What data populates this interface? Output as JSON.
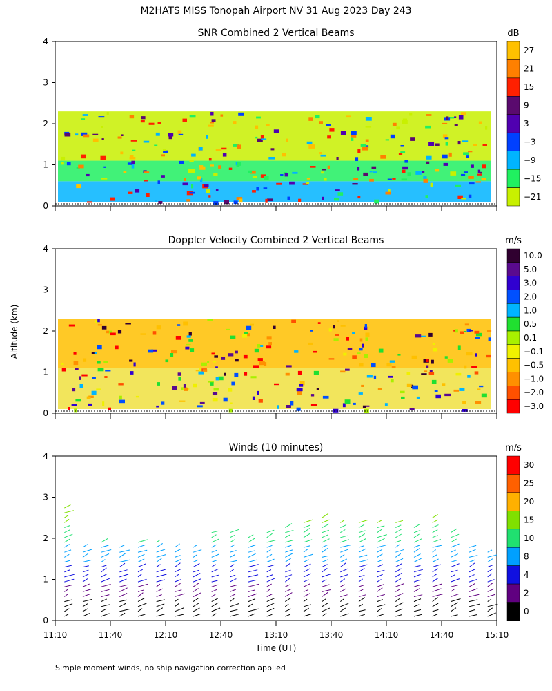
{
  "page": {
    "title": "M2HATS MISS Tonopah Airport NV  31 Aug 2023 Day 243",
    "ylabel": "Altitude (km)",
    "xlabel": "Time (UT)",
    "footnote": "Simple moment winds, no ship navigation correction applied"
  },
  "chart_data": [
    {
      "type": "heatmap",
      "title": "SNR Combined 2 Vertical Beams",
      "xlabel": "Time (UT)",
      "ylabel": "Altitude (km)",
      "ylim": [
        0,
        4
      ],
      "yticks": [
        "0",
        "1",
        "2",
        "3",
        "4"
      ],
      "x_ticklabels": [],
      "colorbar": {
        "unit": "dB",
        "labels": [
          "27",
          "21",
          "15",
          "9",
          "3",
          "−3",
          "−9",
          "−15",
          "−21"
        ],
        "colors": [
          "#ffc000",
          "#ff8000",
          "#ff2000",
          "#5a0a6e",
          "#5000b0",
          "#0040ff",
          "#00b4ff",
          "#20f060",
          "#c8f000"
        ]
      },
      "bands": [
        {
          "alt_from": 0.1,
          "alt_to": 0.6,
          "color": "#00b4ff"
        },
        {
          "alt_from": 0.6,
          "alt_to": 1.1,
          "color": "#20f060"
        },
        {
          "alt_from": 1.1,
          "alt_to": 2.3,
          "color": "#c8f000"
        }
      ]
    },
    {
      "type": "heatmap",
      "title": "Doppler Velocity Combined 2 Vertical Beams",
      "xlabel": "Time (UT)",
      "ylabel": "Altitude (km)",
      "ylim": [
        0,
        4
      ],
      "yticks": [
        "0",
        "1",
        "2",
        "3",
        "4"
      ],
      "x_ticklabels": [],
      "colorbar": {
        "unit": "m/s",
        "labels": [
          "10.0",
          "5.0",
          "3.0",
          "2.0",
          "1.0",
          "0.5",
          "0.1",
          "−0.1",
          "−0.5",
          "−1.0",
          "−2.0",
          "−3.0"
        ],
        "colors": [
          "#300030",
          "#5a0a8e",
          "#3000d0",
          "#0050ff",
          "#00b4ff",
          "#20e030",
          "#a8f000",
          "#f0f000",
          "#ffc000",
          "#ff9000",
          "#ff5000",
          "#ff0000"
        ]
      },
      "bands": [
        {
          "alt_from": 0.1,
          "alt_to": 1.1,
          "color": "#f0e040"
        },
        {
          "alt_from": 1.1,
          "alt_to": 2.3,
          "color": "#ffc000"
        }
      ]
    },
    {
      "type": "scatter",
      "subtype": "wind-barbs",
      "title": "Winds (10 minutes)",
      "xlabel": "Time (UT)",
      "ylabel": "Altitude (km)",
      "ylim": [
        0,
        4
      ],
      "yticks": [
        "0",
        "1",
        "2",
        "3",
        "4"
      ],
      "x_ticklabels": [
        "11:10",
        "11:40",
        "12:10",
        "12:40",
        "13:10",
        "13:40",
        "14:10",
        "14:40",
        "15:10"
      ],
      "colorbar": {
        "unit": "m/s",
        "labels": [
          "30",
          "25",
          "20",
          "15",
          "10",
          "8",
          "4",
          "2",
          "0"
        ],
        "colors": [
          "#ff0000",
          "#ff6000",
          "#ffb000",
          "#80e000",
          "#20e070",
          "#00a0ff",
          "#1010e0",
          "#600080",
          "#000000"
        ]
      },
      "profiles": [
        {
          "time": "11:15",
          "top_km": 2.8
        },
        {
          "time": "11:25",
          "top_km": 1.8
        },
        {
          "time": "11:35",
          "top_km": 2.0
        },
        {
          "time": "11:45",
          "top_km": 1.9
        },
        {
          "time": "11:55",
          "top_km": 2.0
        },
        {
          "time": "12:05",
          "top_km": 2.0
        },
        {
          "time": "12:15",
          "top_km": 1.9
        },
        {
          "time": "12:25",
          "top_km": 1.8
        },
        {
          "time": "12:35",
          "top_km": 2.2
        },
        {
          "time": "12:45",
          "top_km": 2.2
        },
        {
          "time": "12:55",
          "top_km": 2.1
        },
        {
          "time": "13:05",
          "top_km": 2.2
        },
        {
          "time": "13:15",
          "top_km": 2.3
        },
        {
          "time": "13:25",
          "top_km": 2.5
        },
        {
          "time": "13:35",
          "top_km": 2.6
        },
        {
          "time": "13:45",
          "top_km": 2.5
        },
        {
          "time": "13:55",
          "top_km": 2.5
        },
        {
          "time": "14:05",
          "top_km": 2.5
        },
        {
          "time": "14:15",
          "top_km": 2.4
        },
        {
          "time": "14:25",
          "top_km": 2.3
        },
        {
          "time": "14:35",
          "top_km": 2.6
        },
        {
          "time": "14:45",
          "top_km": 2.2
        },
        {
          "time": "14:55",
          "top_km": 1.9
        },
        {
          "time": "15:05",
          "top_km": 1.7
        }
      ]
    }
  ]
}
